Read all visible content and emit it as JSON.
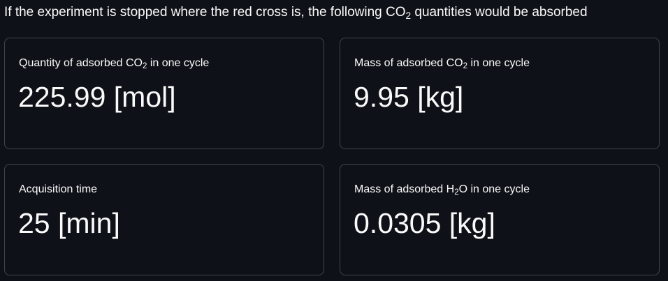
{
  "header": {
    "text_before_sub": "If the experiment is stopped where the red cross is, the following CO",
    "sub": "2",
    "text_after_sub": " quantities would be absorbed"
  },
  "metrics": [
    {
      "label_before_sub": "Quantity of adsorbed CO",
      "label_sub": "2",
      "label_after_sub": " in one cycle",
      "value": "225.99 [mol]"
    },
    {
      "label_before_sub": "Mass of adsorbed CO",
      "label_sub": "2",
      "label_after_sub": " in one cycle",
      "value": "9.95 [kg]"
    },
    {
      "label": "Acquisition time",
      "value": "25 [min]"
    },
    {
      "label_before_sub": "Mass of adsorbed H",
      "label_sub": "2",
      "label_after_sub": "O in one cycle",
      "value": "0.0305 [kg]"
    }
  ]
}
